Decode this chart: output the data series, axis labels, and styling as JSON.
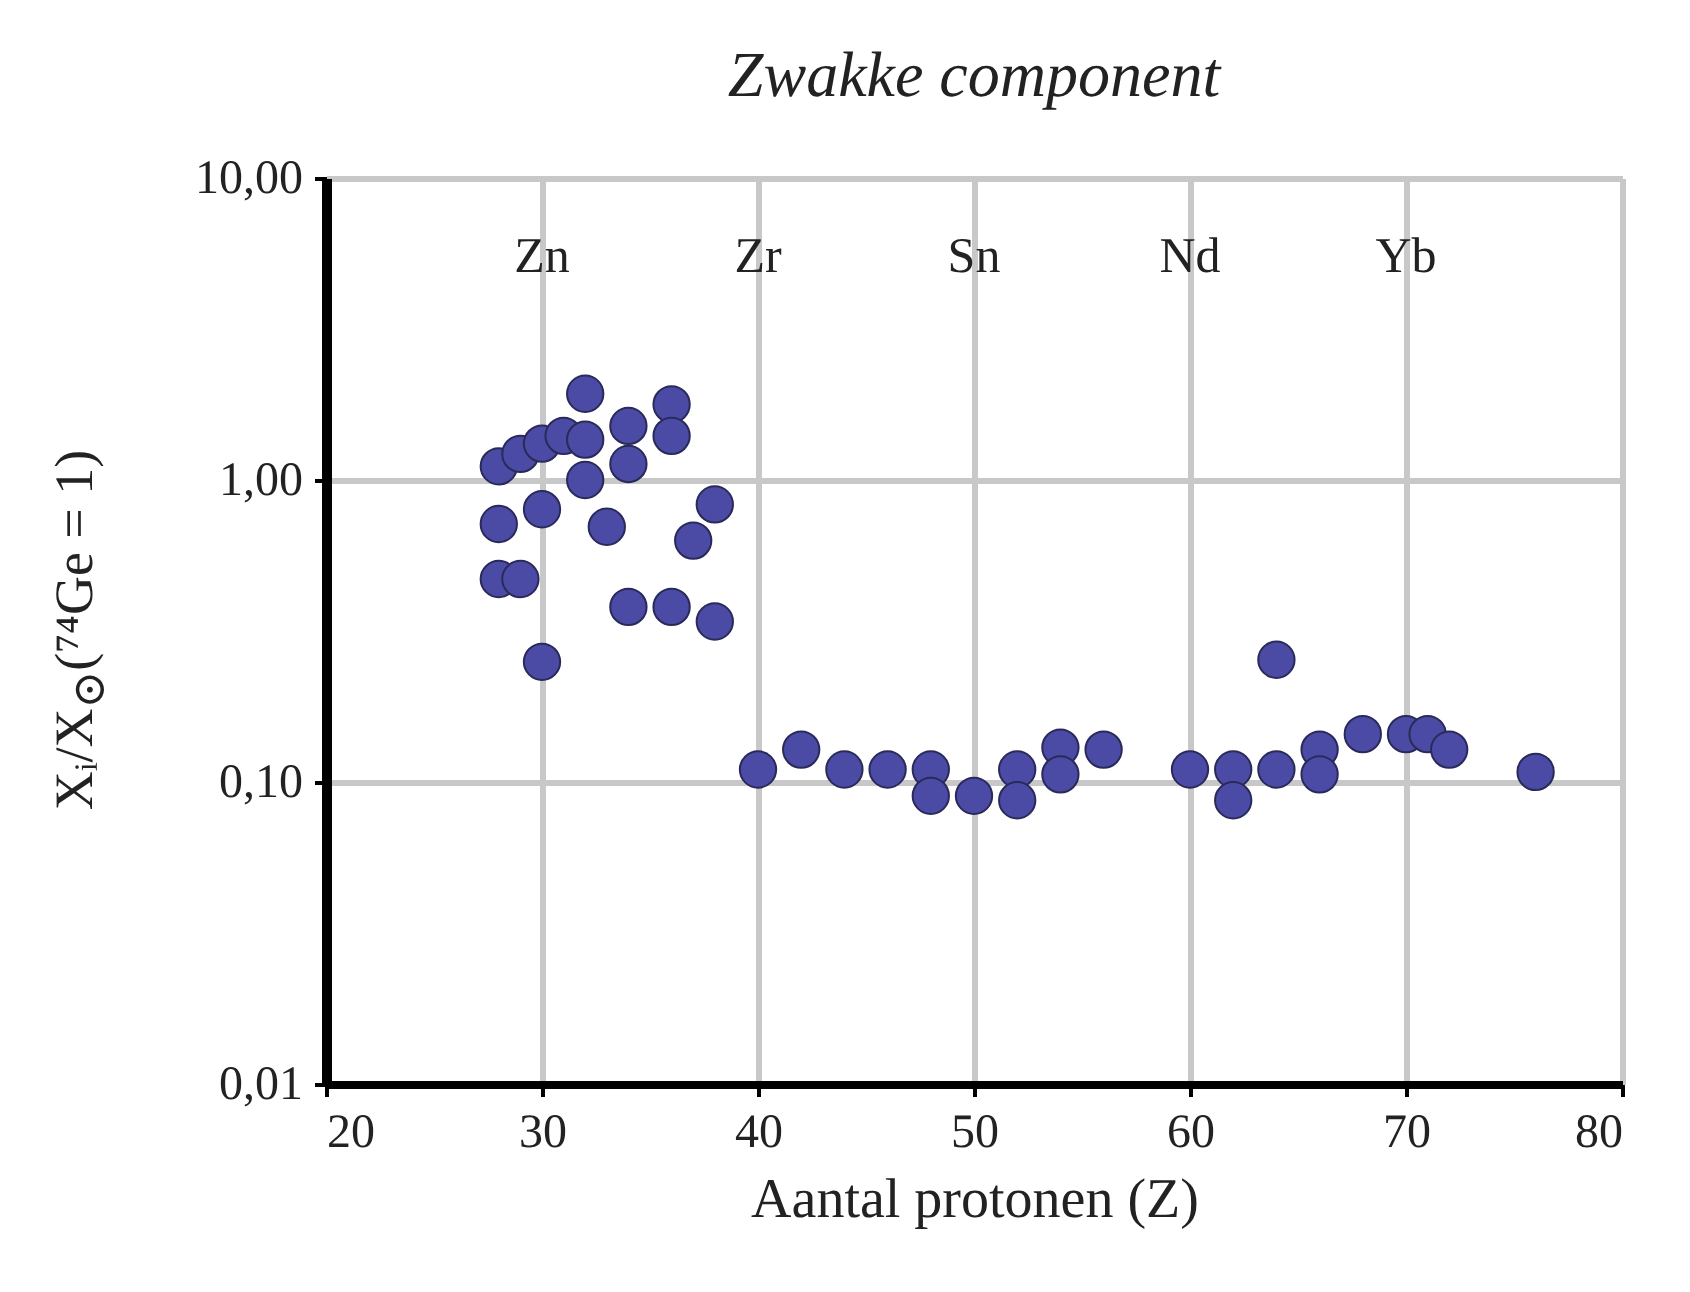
{
  "chart_data": {
    "type": "scatter",
    "title": "Zwakke component",
    "xlabel": "Aantal protonen (Z)",
    "ylabel": "Xᵢ/X$_{⊙}$(⁷⁴Ge = 1)",
    "x": [
      28,
      29,
      30,
      31,
      32,
      32,
      32,
      34,
      34,
      36,
      36,
      28,
      30,
      33,
      38,
      37,
      28,
      29,
      30,
      34,
      36,
      38,
      40,
      42,
      44,
      46,
      48,
      48,
      50,
      52,
      52,
      54,
      54,
      56,
      60,
      62,
      62,
      64,
      64,
      66,
      66,
      68,
      70,
      71,
      72,
      76
    ],
    "series": [
      {
        "color": "#4b4ba6",
        "values": [
          1.11,
          1.22,
          1.32,
          1.4,
          1.93,
          1.36,
          1.0,
          1.51,
          1.13,
          1.78,
          1.4,
          0.715,
          0.8,
          0.7,
          0.83,
          0.63,
          0.47,
          0.47,
          0.25,
          0.38,
          0.38,
          0.34,
          0.11,
          0.128,
          0.11,
          0.11,
          0.11,
          0.09,
          0.09,
          0.11,
          0.087,
          0.13,
          0.106,
          0.128,
          0.11,
          0.11,
          0.087,
          0.254,
          0.11,
          0.128,
          0.106,
          0.144,
          0.144,
          0.144,
          0.128,
          0.108
        ]
      }
    ],
    "xlim": [
      20,
      80
    ],
    "xticks": [
      20,
      30,
      40,
      50,
      60,
      70,
      80
    ],
    "ylim": [
      0.01,
      10
    ],
    "yticks": [
      {
        "value": 0.01,
        "label": "0,01"
      },
      {
        "value": 0.1,
        "label": "0,10"
      },
      {
        "value": 1,
        "label": "1,00"
      },
      {
        "value": 10,
        "label": "10,00"
      }
    ],
    "log": "y",
    "grid": true,
    "marker": "circle",
    "annotations": [
      "Zn",
      "Zr",
      "Sn",
      "Nd",
      "Yb"
    ]
  }
}
